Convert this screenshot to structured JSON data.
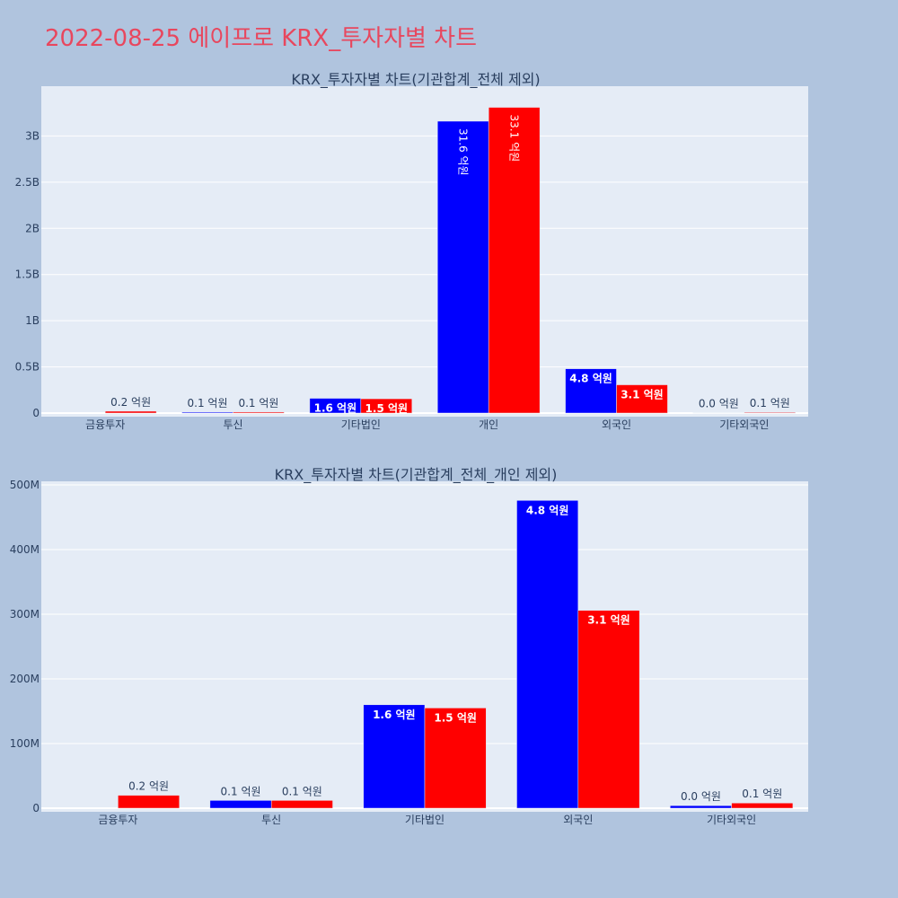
{
  "page": {
    "title": "2022-08-25 에이프로 KRX_투자자별 차트"
  },
  "colors": {
    "background": "#b0c4de",
    "plot_bg": "#e5ecf6",
    "buy": "#0000ff",
    "sell": "#ff0000",
    "title": "#e8475e",
    "text": "#2a3f5f"
  },
  "chart_data": [
    {
      "type": "bar",
      "title": "KRX_투자자별 차트(기관합계_전체 제외)",
      "categories": [
        "금융투자",
        "투신",
        "기타법인",
        "개인",
        "외국인",
        "기타외국인"
      ],
      "ylim": [
        0,
        3500000000
      ],
      "yticks": [
        0,
        500000000,
        1000000000,
        1500000000,
        2000000000,
        2500000000,
        3000000000
      ],
      "ytick_labels": [
        "0",
        "0.5B",
        "1B",
        "1.5B",
        "2B",
        "2.5B",
        "3B"
      ],
      "grid": true,
      "series": [
        {
          "color": "#0000ff",
          "values": [
            0,
            10000000,
            160000000,
            3160000000,
            480000000,
            3000000
          ],
          "labels": [
            "",
            "0.1 억원",
            "1.6 억원",
            "31.6 억원",
            "4.8 억원",
            "0.0 억원"
          ]
        },
        {
          "color": "#ff0000",
          "values": [
            20000000,
            11000000,
            155000000,
            3310000000,
            306000000,
            8000000
          ],
          "labels": [
            "0.2 억원",
            "0.1 억원",
            "1.5 억원",
            "33.1 억원",
            "3.1 억원",
            "0.1 억원"
          ]
        }
      ]
    },
    {
      "type": "bar",
      "title": "KRX_투자자별 차트(기관합계_전체_개인 제외)",
      "categories": [
        "금융투자",
        "투신",
        "기타법인",
        "외국인",
        "기타외국인"
      ],
      "ylim": [
        0,
        500000000
      ],
      "yticks": [
        0,
        100000000,
        200000000,
        300000000,
        400000000,
        500000000
      ],
      "ytick_labels": [
        "0",
        "100M",
        "200M",
        "300M",
        "400M",
        "500M"
      ],
      "grid": true,
      "series": [
        {
          "color": "#0000ff",
          "values": [
            0,
            12000000,
            160000000,
            476000000,
            4000000
          ],
          "labels": [
            "",
            "0.1 억원",
            "1.6 억원",
            "4.8 억원",
            "0.0 억원"
          ]
        },
        {
          "color": "#ff0000",
          "values": [
            20000000,
            12000000,
            155000000,
            306000000,
            8000000
          ],
          "labels": [
            "0.2 억원",
            "0.1 억원",
            "1.5 억원",
            "3.1 억원",
            "0.1 억원"
          ]
        }
      ]
    }
  ]
}
